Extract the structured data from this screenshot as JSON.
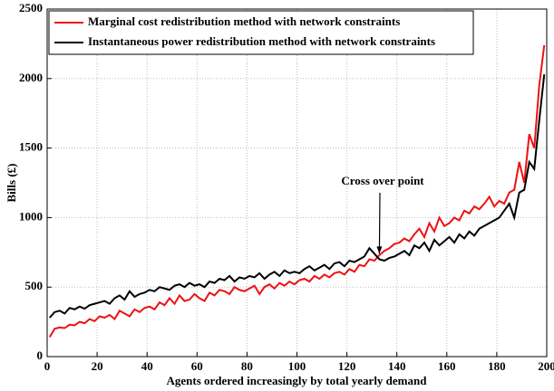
{
  "chart_data": {
    "type": "line",
    "xlabel": "Agents ordered increasingly by total yearly demand",
    "ylabel": "Bills (£)",
    "x": [
      1,
      3,
      5,
      7,
      9,
      11,
      13,
      15,
      17,
      19,
      21,
      23,
      25,
      27,
      29,
      31,
      33,
      35,
      37,
      39,
      41,
      43,
      45,
      47,
      49,
      51,
      53,
      55,
      57,
      59,
      61,
      63,
      65,
      67,
      69,
      71,
      73,
      75,
      77,
      79,
      81,
      83,
      85,
      87,
      89,
      91,
      93,
      95,
      97,
      99,
      101,
      103,
      105,
      107,
      109,
      111,
      113,
      115,
      117,
      119,
      121,
      123,
      125,
      127,
      129,
      131,
      133,
      135,
      137,
      139,
      141,
      143,
      145,
      147,
      149,
      151,
      153,
      155,
      157,
      159,
      161,
      163,
      165,
      167,
      169,
      171,
      173,
      175,
      177,
      179,
      181,
      183,
      185,
      187,
      189,
      191,
      193,
      195,
      197,
      199
    ],
    "series": [
      {
        "name": "Marginal cost redistribution method with network constraints",
        "color": "#ee1111",
        "values": [
          140,
          200,
          210,
          205,
          230,
          225,
          250,
          240,
          270,
          255,
          290,
          280,
          300,
          270,
          330,
          310,
          290,
          340,
          320,
          350,
          360,
          340,
          390,
          370,
          420,
          380,
          440,
          400,
          410,
          450,
          420,
          400,
          460,
          440,
          480,
          470,
          450,
          500,
          480,
          470,
          490,
          510,
          450,
          500,
          520,
          490,
          530,
          510,
          540,
          520,
          550,
          560,
          540,
          580,
          560,
          590,
          570,
          600,
          610,
          590,
          630,
          610,
          660,
          650,
          700,
          690,
          730,
          760,
          780,
          810,
          820,
          850,
          830,
          880,
          920,
          860,
          960,
          900,
          1000,
          940,
          960,
          1000,
          980,
          1050,
          1030,
          1080,
          1060,
          1100,
          1150,
          1080,
          1120,
          1100,
          1180,
          1200,
          1400,
          1250,
          1600,
          1500,
          1950,
          2240
        ]
      },
      {
        "name": "Instantaneous power redistribution method with network constraints",
        "color": "#000000",
        "values": [
          280,
          320,
          330,
          310,
          350,
          340,
          360,
          345,
          370,
          380,
          390,
          400,
          380,
          420,
          440,
          410,
          470,
          430,
          450,
          460,
          480,
          470,
          500,
          490,
          480,
          510,
          520,
          500,
          530,
          510,
          520,
          500,
          540,
          530,
          560,
          550,
          580,
          540,
          570,
          560,
          580,
          570,
          600,
          560,
          590,
          610,
          580,
          620,
          600,
          610,
          600,
          630,
          650,
          620,
          640,
          660,
          630,
          670,
          680,
          650,
          690,
          680,
          700,
          720,
          780,
          740,
          700,
          690,
          710,
          720,
          740,
          760,
          730,
          800,
          780,
          820,
          760,
          840,
          800,
          830,
          860,
          820,
          880,
          850,
          900,
          870,
          920,
          940,
          960,
          980,
          1000,
          1050,
          1100,
          1000,
          1180,
          1200,
          1400,
          1350,
          1700,
          2030
        ]
      }
    ],
    "annotation": {
      "text": "Cross over point",
      "x": 133,
      "y": 740
    },
    "xlim": [
      0,
      200
    ],
    "xticks": [
      0,
      20,
      40,
      60,
      80,
      100,
      120,
      140,
      160,
      180,
      200
    ],
    "ylim": [
      0,
      2500
    ],
    "yticks": [
      0,
      500,
      1000,
      1500,
      2000,
      2500
    ],
    "grid": true,
    "legend": "upper left"
  }
}
